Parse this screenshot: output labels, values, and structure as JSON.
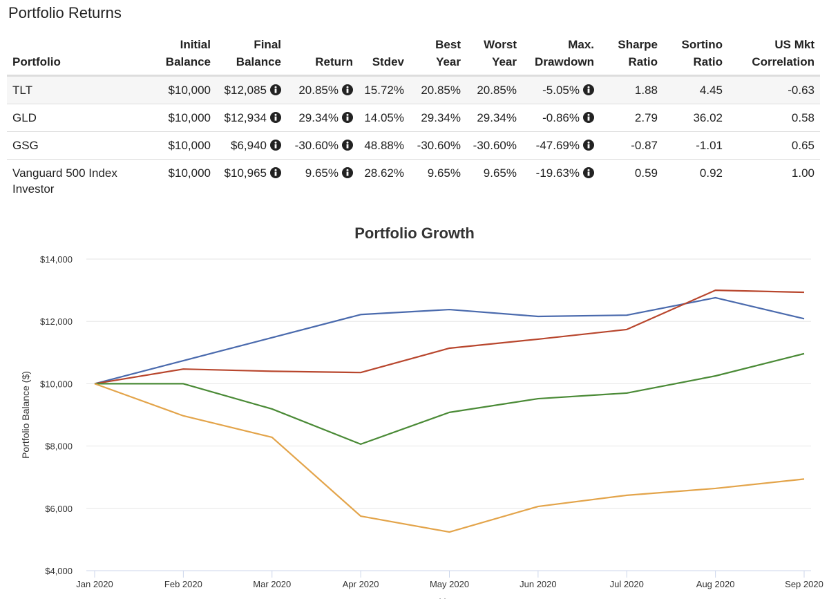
{
  "header": {
    "title": "Portfolio Returns"
  },
  "table": {
    "columns": [
      [
        "Portfolio"
      ],
      [
        "Initial",
        "Balance"
      ],
      [
        "Final",
        "Balance"
      ],
      [
        "Return"
      ],
      [
        "Stdev"
      ],
      [
        "Best",
        "Year"
      ],
      [
        "Worst",
        "Year"
      ],
      [
        "Max.",
        "Drawdown"
      ],
      [
        "Sharpe",
        "Ratio"
      ],
      [
        "Sortino",
        "Ratio"
      ],
      [
        "US Mkt",
        "Correlation"
      ]
    ],
    "info_columns": [
      2,
      3,
      7
    ],
    "rows": [
      [
        "TLT",
        "$10,000",
        "$12,085",
        "20.85%",
        "15.72%",
        "20.85%",
        "20.85%",
        "-5.05%",
        "1.88",
        "4.45",
        "-0.63"
      ],
      [
        "GLD",
        "$10,000",
        "$12,934",
        "29.34%",
        "14.05%",
        "29.34%",
        "29.34%",
        "-0.86%",
        "2.79",
        "36.02",
        "0.58"
      ],
      [
        "GSG",
        "$10,000",
        "$6,940",
        "-30.60%",
        "48.88%",
        "-30.60%",
        "-30.60%",
        "-47.69%",
        "-0.87",
        "-1.01",
        "0.65"
      ],
      [
        "Vanguard 500 Index Investor",
        "$10,000",
        "$10,965",
        "9.65%",
        "28.62%",
        "9.65%",
        "9.65%",
        "-19.63%",
        "0.59",
        "0.92",
        "1.00"
      ]
    ]
  },
  "chart_data": {
    "type": "line",
    "title": "Portfolio Growth",
    "x_label": "Year",
    "y_label": "Portfolio Balance ($)",
    "categories": [
      "Jan 2020",
      "Feb 2020",
      "Mar 2020",
      "Apr 2020",
      "May 2020",
      "Jun 2020",
      "Jul 2020",
      "Aug 2020",
      "Sep 2020"
    ],
    "series": [
      {
        "color": "#4a6aad",
        "values": [
          10000,
          10740,
          11480,
          12220,
          12380,
          12160,
          12200,
          12760,
          12085
        ]
      },
      {
        "color": "#b8462d",
        "values": [
          10000,
          10470,
          10400,
          10360,
          11140,
          11430,
          11740,
          13000,
          12934
        ]
      },
      {
        "color": "#4a8a36",
        "values": [
          10000,
          10000,
          9190,
          8060,
          9080,
          9520,
          9700,
          10250,
          10965
        ]
      },
      {
        "color": "#e3a44a",
        "values": [
          10000,
          8970,
          8280,
          5750,
          5240,
          6060,
          6420,
          6640,
          6940
        ]
      }
    ],
    "ylim": [
      4000,
      14000
    ],
    "yticks": [
      {
        "value": 4000,
        "label": "$4,000"
      },
      {
        "value": 6000,
        "label": "$6,000"
      },
      {
        "value": 8000,
        "label": "$8,000"
      },
      {
        "value": 10000,
        "label": "$10,000"
      },
      {
        "value": 12000,
        "label": "$12,000"
      },
      {
        "value": 14000,
        "label": "$14,000"
      }
    ],
    "grid": true
  }
}
